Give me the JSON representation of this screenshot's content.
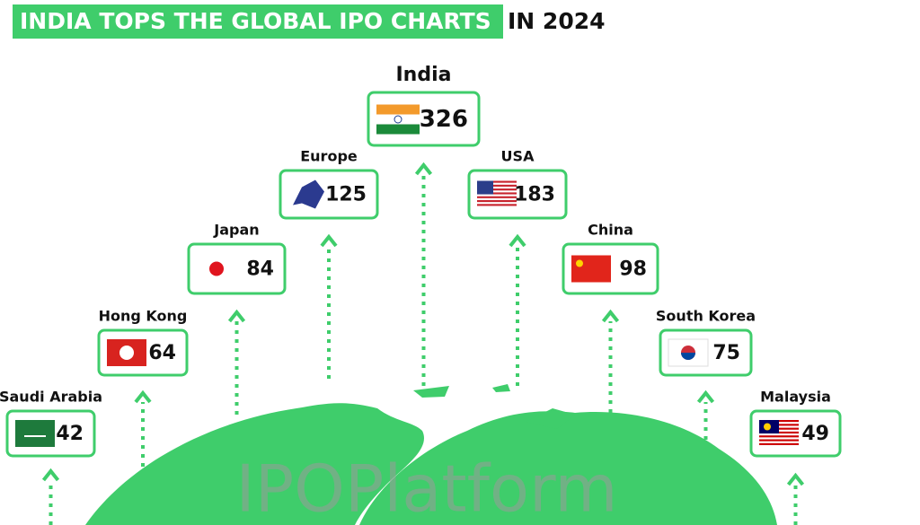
{
  "header": {
    "title_highlight": "INDIA TOPS THE GLOBAL IPO CHARTS",
    "title_rest": "IN 2024"
  },
  "items": [
    {
      "label": "Saudi Arabia",
      "value": 42
    },
    {
      "label": "Hong Kong",
      "value": 64
    },
    {
      "label": "Japan",
      "value": 84
    },
    {
      "label": "Europe",
      "value": 125
    },
    {
      "label": "India",
      "value": 326
    },
    {
      "label": "USA",
      "value": 183
    },
    {
      "label": "China",
      "value": 98
    },
    {
      "label": "South Korea",
      "value": 75
    },
    {
      "label": "Malaysia",
      "value": 49
    }
  ],
  "watermark": "IPOPlatform"
}
